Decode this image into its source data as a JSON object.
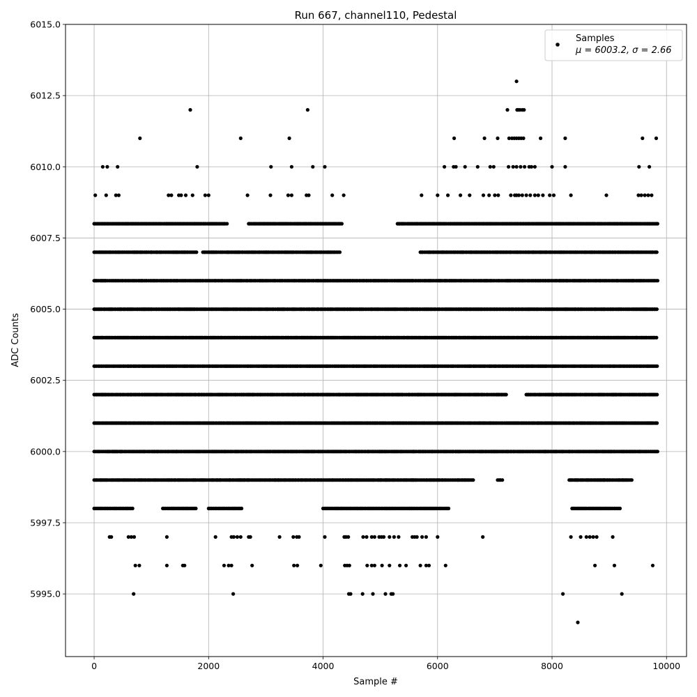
{
  "chart_data": {
    "type": "scatter",
    "title": "Run 667, channel110, Pedestal",
    "xlabel": "Sample #",
    "ylabel": "ADC Counts",
    "xlim": [
      -500,
      10350
    ],
    "ylim": [
      5992.8,
      6015.0
    ],
    "xticks": [
      0,
      2000,
      4000,
      6000,
      8000,
      10000
    ],
    "xtick_labels": [
      "0",
      "2000",
      "4000",
      "6000",
      "8000",
      "10000"
    ],
    "yticks": [
      5995.0,
      5997.5,
      6000.0,
      6002.5,
      6005.0,
      6007.5,
      6010.0,
      6012.5,
      6015.0
    ],
    "ytick_labels": [
      "5995.0",
      "5997.5",
      "6000.0",
      "6002.5",
      "6005.0",
      "6007.5",
      "6010.0",
      "6012.5",
      "6015.0"
    ],
    "grid": true,
    "legend": {
      "placement": "top-right",
      "entries": [
        {
          "label": "Samples",
          "stats": "μ = 6003.2, σ = 2.66",
          "marker_color": "#000000"
        }
      ]
    },
    "series": [
      {
        "name": "Samples",
        "color": "#000000",
        "levels": [
          {
            "y": 6013,
            "x": [
              7380
            ]
          },
          {
            "y": 6012,
            "x": [
              1680,
              3730,
              7220,
              7390,
              7410,
              7440,
              7480,
              7510
            ]
          },
          {
            "y": 6011,
            "x": [
              800,
              2560,
              3410,
              6290,
              6820,
              7050,
              7250,
              7300,
              7340,
              7380,
              7420,
              7460,
              7500,
              7800,
              8230,
              9580,
              9820
            ]
          },
          {
            "y": 6010,
            "x": [
              150,
              230,
              410,
              1800,
              3090,
              3450,
              3820,
              4030,
              6120,
              6280,
              6320,
              6480,
              6700,
              6920,
              6980,
              7240,
              7320,
              7380,
              7450,
              7520,
              7600,
              7640,
              7700,
              8000,
              8230,
              9520,
              9700
            ]
          },
          {
            "y": 6009,
            "x": [
              20,
              210,
              380,
              430,
              1300,
              1350,
              1480,
              1520,
              1600,
              1720,
              1940,
              2000,
              2680,
              3080,
              3390,
              3450,
              3710,
              3750,
              4160,
              4360,
              5720,
              6000,
              6180,
              6400,
              6560,
              6800,
              6900,
              7000,
              7060,
              7280,
              7350,
              7380,
              7420,
              7480,
              7550,
              7620,
              7700,
              7760,
              7840,
              7960,
              8030,
              8330,
              8950,
              9510,
              9560,
              9620,
              9680,
              9740
            ]
          }
        ],
        "dense_ranges": [
          {
            "y": 6008,
            "x_ranges": [
              [
                0,
                2350
              ],
              [
                2700,
                4350
              ],
              [
                5300,
                9850
              ]
            ]
          },
          {
            "y": 6007,
            "x_ranges": [
              [
                0,
                1800
              ],
              [
                1900,
                4300
              ],
              [
                5700,
                9850
              ]
            ]
          },
          {
            "y": 6006,
            "x_ranges": [
              [
                0,
                9850
              ]
            ]
          },
          {
            "y": 6005,
            "x_ranges": [
              [
                0,
                9850
              ]
            ]
          },
          {
            "y": 6004,
            "x_ranges": [
              [
                0,
                9850
              ]
            ]
          },
          {
            "y": 6003,
            "x_ranges": [
              [
                0,
                9850
              ]
            ]
          },
          {
            "y": 6002,
            "x_ranges": [
              [
                0,
                7200
              ],
              [
                7550,
                9850
              ]
            ]
          },
          {
            "y": 6001,
            "x_ranges": [
              [
                0,
                9850
              ]
            ]
          },
          {
            "y": 6000,
            "x_ranges": [
              [
                0,
                9850
              ]
            ]
          },
          {
            "y": 5999,
            "x_ranges": [
              [
                0,
                6650
              ],
              [
                7050,
                7150
              ],
              [
                8300,
                9400
              ]
            ]
          },
          {
            "y": 5998,
            "x_ranges": [
              [
                0,
                700
              ],
              [
                1200,
                1800
              ],
              [
                2000,
                2600
              ],
              [
                4000,
                6200
              ],
              [
                8350,
                9200
              ]
            ]
          }
        ],
        "sparse_low": [
          {
            "y": 5997,
            "x": [
              270,
              300,
              600,
              650,
              700,
              1270,
              2120,
              2400,
              2440,
              2500,
              2560,
              2700,
              2730,
              3240,
              3480,
              3540,
              3580,
              4030,
              4370,
              4400,
              4440,
              4700,
              4760,
              4850,
              4900,
              4980,
              5020,
              5060,
              5160,
              5240,
              5320,
              5560,
              5600,
              5640,
              5730,
              5800,
              6000,
              6790,
              8330,
              8500,
              8600,
              8660,
              8720,
              8780,
              9060
            ]
          },
          {
            "y": 5996,
            "x": [
              720,
              790,
              1270,
              1550,
              1580,
              2270,
              2350,
              2400,
              2760,
              3490,
              3550,
              3960,
              4380,
              4420,
              4460,
              4770,
              4850,
              4900,
              5030,
              5160,
              5340,
              5450,
              5700,
              5800,
              5850,
              6140,
              8750,
              9090,
              9760
            ]
          },
          {
            "y": 5995,
            "x": [
              690,
              2430,
              4450,
              4480,
              4690,
              4870,
              5090,
              5190,
              5220,
              8190,
              9220
            ]
          },
          {
            "y": 5994,
            "x": [
              8450
            ]
          }
        ]
      }
    ]
  }
}
